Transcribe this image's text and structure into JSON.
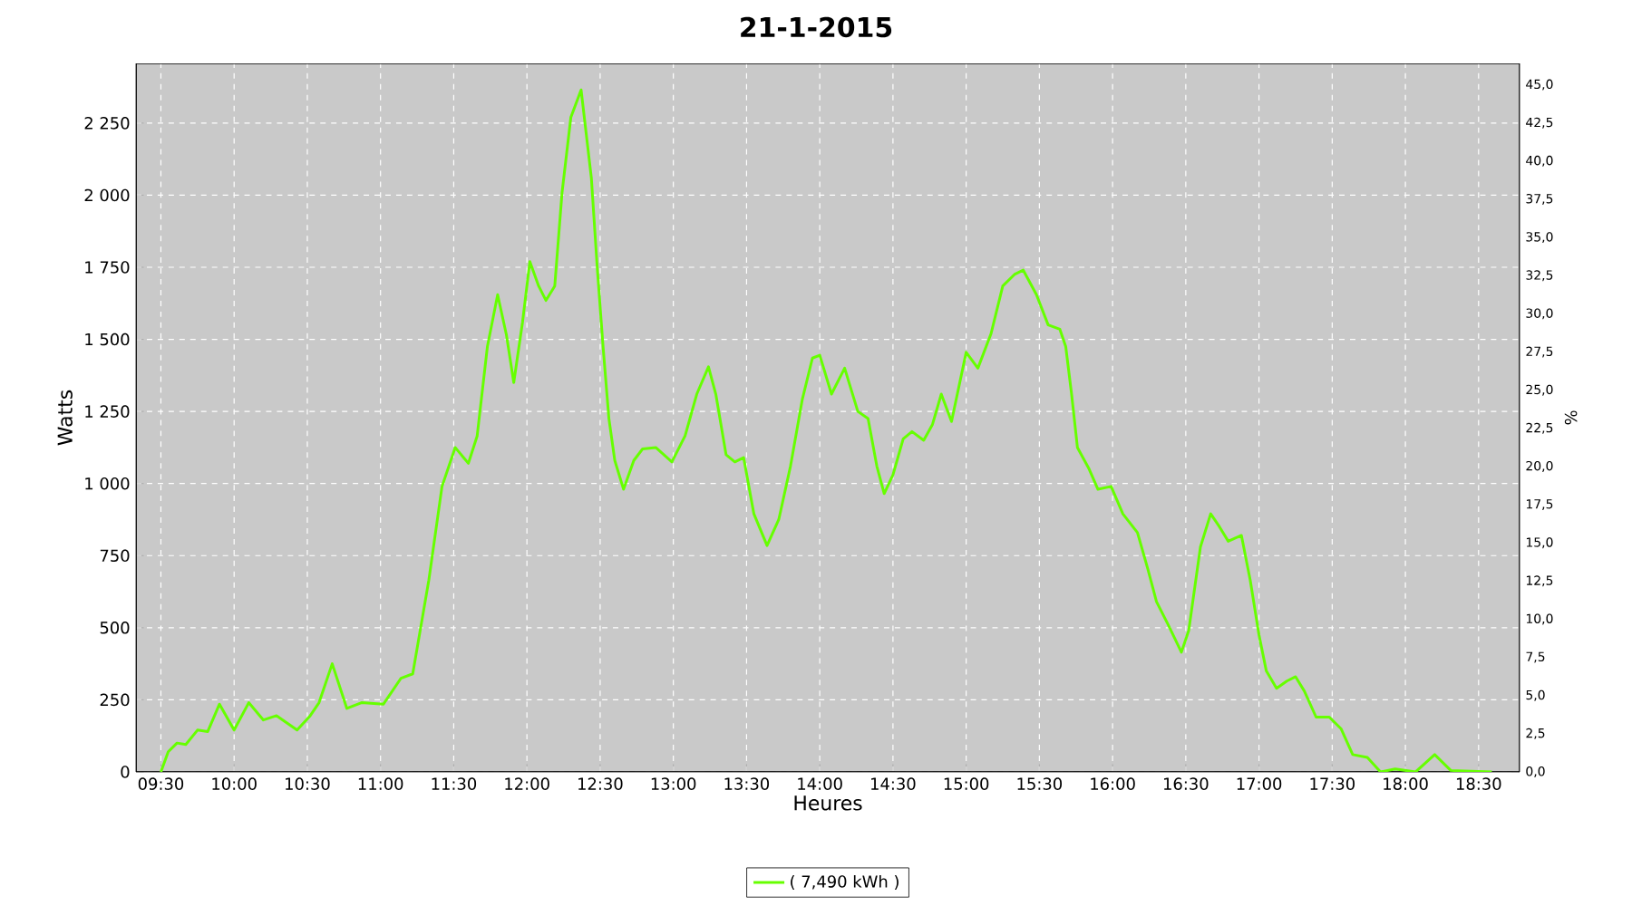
{
  "chart_data": {
    "type": "line",
    "title": "21-1-2015",
    "xlabel": "Heures",
    "ylabel": "Watts",
    "y2label": "%",
    "xlim": [
      9.33,
      18.78
    ],
    "ylim": [
      0,
      2457
    ],
    "y2lim": [
      0,
      46.4
    ],
    "xticks": [
      {
        "value": 9.5,
        "label": "09:30"
      },
      {
        "value": 10,
        "label": "10:00"
      },
      {
        "value": 10.5,
        "label": "10:30"
      },
      {
        "value": 11,
        "label": "11:00"
      },
      {
        "value": 11.5,
        "label": "11:30"
      },
      {
        "value": 12,
        "label": "12:00"
      },
      {
        "value": 12.5,
        "label": "12:30"
      },
      {
        "value": 13,
        "label": "13:00"
      },
      {
        "value": 13.5,
        "label": "13:30"
      },
      {
        "value": 14,
        "label": "14:00"
      },
      {
        "value": 14.5,
        "label": "14:30"
      },
      {
        "value": 15,
        "label": "15:00"
      },
      {
        "value": 15.5,
        "label": "15:30"
      },
      {
        "value": 16,
        "label": "16:00"
      },
      {
        "value": 16.5,
        "label": "16:30"
      },
      {
        "value": 17,
        "label": "17:00"
      },
      {
        "value": 17.5,
        "label": "17:30"
      },
      {
        "value": 18,
        "label": "18:00"
      },
      {
        "value": 18.5,
        "label": "18:30"
      }
    ],
    "yticks": [
      0,
      250,
      500,
      750,
      {
        "value": 1000,
        "label": "1 000"
      },
      {
        "value": 1250,
        "label": "1 250"
      },
      {
        "value": 1500,
        "label": "1 500"
      },
      {
        "value": 1750,
        "label": "1 750"
      },
      {
        "value": 2000,
        "label": "2 000"
      },
      {
        "value": 2250,
        "label": "2 250"
      }
    ],
    "y2ticks": [
      {
        "value": 0,
        "label": "0,0"
      },
      {
        "value": 2.5,
        "label": "2,5"
      },
      {
        "value": 5,
        "label": "5,0"
      },
      {
        "value": 7.5,
        "label": "7,5"
      },
      {
        "value": 10,
        "label": "10,0"
      },
      {
        "value": 12.5,
        "label": "12,5"
      },
      {
        "value": 15,
        "label": "15,0"
      },
      {
        "value": 17.5,
        "label": "17,5"
      },
      {
        "value": 20,
        "label": "20,0"
      },
      {
        "value": 22.5,
        "label": "22,5"
      },
      {
        "value": 25,
        "label": "25,0"
      },
      {
        "value": 27.5,
        "label": "27,5"
      },
      {
        "value": 30,
        "label": "30,0"
      },
      {
        "value": 32.5,
        "label": "32,5"
      },
      {
        "value": 35,
        "label": "35,0"
      },
      {
        "value": 37.5,
        "label": "37,5"
      },
      {
        "value": 40,
        "label": "40,0"
      },
      {
        "value": 42.5,
        "label": "42,5"
      },
      {
        "value": 45,
        "label": "45,0"
      }
    ],
    "grid": true,
    "legend": "bottom",
    "marker": "none",
    "line_style": "solid",
    "series": [
      {
        "name": "( 7,490 kWh )",
        "color": "#66ff00",
        "x": [
          9.5,
          9.55,
          9.61,
          9.67,
          9.75,
          9.82,
          9.9,
          10.0,
          10.1,
          10.2,
          10.29,
          10.43,
          10.52,
          10.58,
          10.67,
          10.77,
          10.87,
          11.02,
          11.14,
          11.22,
          11.33,
          11.42,
          11.51,
          11.6,
          11.66,
          11.73,
          11.8,
          11.86,
          11.91,
          11.97,
          12.02,
          12.08,
          12.13,
          12.19,
          12.24,
          12.3,
          12.37,
          12.44,
          12.48,
          12.52,
          12.56,
          12.6,
          12.66,
          12.73,
          12.79,
          12.88,
          12.99,
          13.08,
          13.16,
          13.24,
          13.29,
          13.36,
          13.42,
          13.48,
          13.55,
          13.64,
          13.72,
          13.8,
          13.88,
          13.95,
          14.0,
          14.08,
          14.17,
          14.26,
          14.33,
          14.39,
          14.44,
          14.5,
          14.57,
          14.63,
          14.71,
          14.77,
          14.83,
          14.9,
          15.0,
          15.08,
          15.17,
          15.25,
          15.33,
          15.39,
          15.48,
          15.56,
          15.64,
          15.68,
          15.72,
          15.76,
          15.84,
          15.9,
          15.99,
          16.07,
          16.17,
          16.24,
          16.3,
          16.38,
          16.47,
          16.52,
          16.6,
          16.67,
          16.73,
          16.79,
          16.88,
          16.94,
          17.0,
          17.05,
          17.12,
          17.19,
          17.25,
          17.31,
          17.39,
          17.48,
          17.56,
          17.64,
          17.74,
          17.83,
          17.93,
          18.07,
          18.2,
          18.31,
          18.59
        ],
        "values": [
          0,
          70,
          100,
          95,
          145,
          140,
          235,
          145,
          240,
          180,
          195,
          145,
          195,
          240,
          375,
          220,
          240,
          235,
          325,
          340,
          665,
          990,
          1125,
          1070,
          1165,
          1475,
          1655,
          1515,
          1350,
          1560,
          1770,
          1685,
          1635,
          1685,
          2010,
          2270,
          2365,
          2060,
          1750,
          1475,
          1225,
          1080,
          980,
          1080,
          1120,
          1125,
          1075,
          1165,
          1310,
          1405,
          1310,
          1100,
          1075,
          1090,
          895,
          785,
          875,
          1060,
          1290,
          1435,
          1445,
          1310,
          1400,
          1250,
          1225,
          1060,
          965,
          1030,
          1155,
          1180,
          1150,
          1205,
          1310,
          1215,
          1455,
          1400,
          1520,
          1685,
          1725,
          1740,
          1655,
          1550,
          1535,
          1475,
          1310,
          1125,
          1050,
          980,
          990,
          895,
          830,
          705,
          590,
          510,
          415,
          490,
          780,
          895,
          850,
          800,
          820,
          665,
          475,
          350,
          290,
          315,
          330,
          280,
          190,
          190,
          150,
          60,
          50,
          0,
          10,
          0,
          60,
          5,
          0
        ]
      }
    ]
  }
}
